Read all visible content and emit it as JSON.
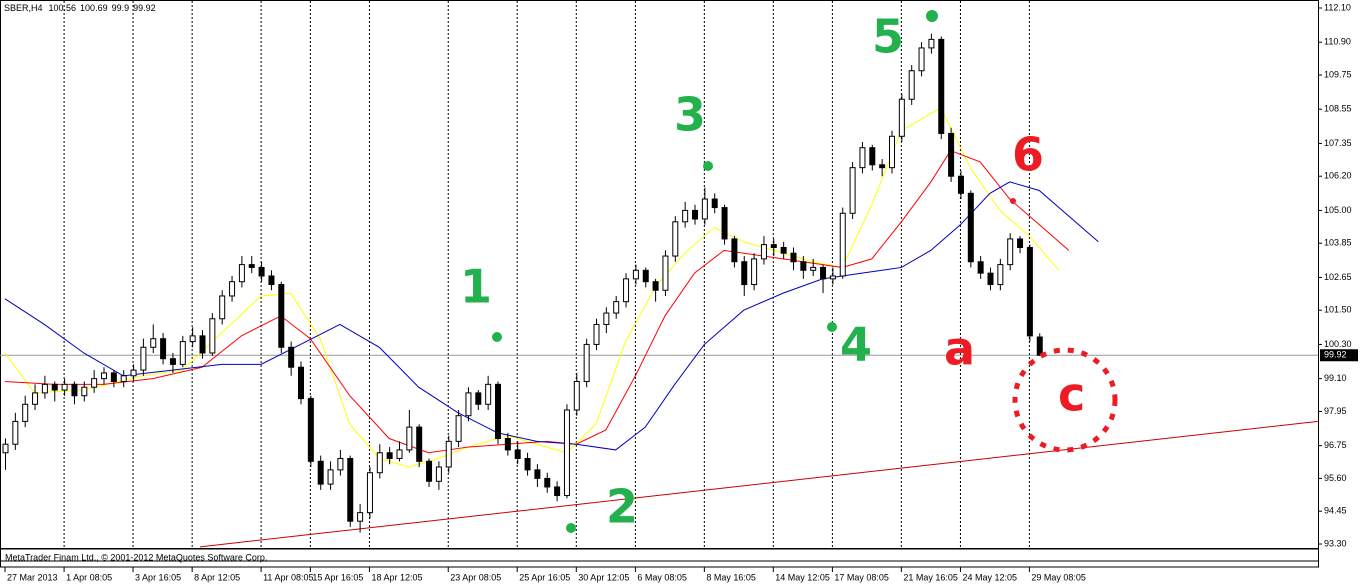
{
  "chart_data": {
    "type": "candlestick",
    "title": "SBER,H4",
    "footer": "MetaTrader Finam Ltd., © 2001-2012 MetaQuotes Software Corp.",
    "ylim": [
      93.3,
      112.1
    ],
    "yticks": [
      {
        "value": 112.1,
        "label": "112.10"
      },
      {
        "value": 110.9,
        "label": "110.90"
      },
      {
        "value": 109.75,
        "label": "109.75"
      },
      {
        "value": 108.55,
        "label": "108.55"
      },
      {
        "value": 107.35,
        "label": "107.35"
      },
      {
        "value": 106.2,
        "label": "106.20"
      },
      {
        "value": 105,
        "label": "105.00"
      },
      {
        "value": 103.85,
        "label": "103.85"
      },
      {
        "value": 102.65,
        "label": "102.65"
      },
      {
        "value": 101.5,
        "label": "101.50"
      },
      {
        "value": 100.3,
        "label": "100.30"
      },
      {
        "value": 99.1,
        "label": "99.10"
      },
      {
        "value": 97.95,
        "label": "97.95"
      },
      {
        "value": 96.75,
        "label": "96.75"
      },
      {
        "value": 95.6,
        "label": "95.60"
      },
      {
        "value": 94.45,
        "label": "94.45"
      },
      {
        "value": 93.3,
        "label": "93.30"
      }
    ],
    "xlim": [
      -0.5,
      133.3
    ],
    "xticks": [
      {
        "value": 0,
        "label": "27 Mar 2013"
      },
      {
        "value": 6,
        "label": "1 Apr 08:05"
      },
      {
        "value": 13,
        "label": "3 Apr 16:05"
      },
      {
        "value": 19,
        "label": "8 Apr 12:05"
      },
      {
        "value": 26,
        "label": "11 Apr 08:05"
      },
      {
        "value": 31,
        "label": "15 Apr 16:05"
      },
      {
        "value": 37,
        "label": "18 Apr 12:05"
      },
      {
        "value": 45,
        "label": "23 Apr 08:05"
      },
      {
        "value": 52,
        "label": "25 Apr 16:05"
      },
      {
        "value": 58,
        "label": "30 Apr 12:05"
      },
      {
        "value": 64,
        "label": "6 May 08:05"
      },
      {
        "value": 71,
        "label": "8 May 16:05"
      },
      {
        "value": 78,
        "label": "14 May 12:05"
      },
      {
        "value": 84,
        "label": "17 May 08:05"
      },
      {
        "value": 91,
        "label": "21 May 16:05"
      },
      {
        "value": 97,
        "label": "24 May 12:05"
      },
      {
        "value": 104,
        "label": "29 May 08:05"
      }
    ],
    "grid": true,
    "up_color": "#ffffff",
    "down_color": "#000000",
    "candles": [
      [
        96.5,
        97.0,
        95.9,
        96.8
      ],
      [
        96.8,
        97.9,
        96.6,
        97.6
      ],
      [
        97.6,
        98.5,
        97.4,
        98.2
      ],
      [
        98.2,
        98.9,
        98.0,
        98.6
      ],
      [
        98.6,
        99.2,
        98.4,
        98.9
      ],
      [
        98.9,
        99.0,
        98.3,
        98.7
      ],
      [
        98.7,
        99.1,
        98.5,
        98.9
      ],
      [
        98.9,
        99.0,
        98.2,
        98.5
      ],
      [
        98.5,
        99.0,
        98.3,
        98.8
      ],
      [
        98.8,
        99.4,
        98.6,
        99.1
      ],
      [
        99.1,
        99.5,
        98.9,
        99.3
      ],
      [
        99.3,
        99.4,
        98.8,
        99.0
      ],
      [
        99.0,
        99.4,
        98.8,
        99.2
      ],
      [
        99.2,
        99.6,
        99.0,
        99.4
      ],
      [
        99.4,
        100.5,
        99.2,
        100.2
      ],
      [
        100.2,
        101.0,
        100.0,
        100.5
      ],
      [
        100.5,
        100.7,
        99.6,
        99.8
      ],
      [
        99.8,
        100.0,
        99.3,
        99.6
      ],
      [
        99.6,
        100.6,
        99.5,
        100.4
      ],
      [
        100.4,
        100.9,
        100.2,
        100.6
      ],
      [
        100.6,
        100.8,
        99.8,
        100.0
      ],
      [
        100.0,
        101.4,
        99.9,
        101.2
      ],
      [
        101.2,
        102.2,
        101.0,
        102.0
      ],
      [
        102.0,
        102.7,
        101.8,
        102.5
      ],
      [
        102.5,
        103.4,
        102.3,
        103.1
      ],
      [
        103.1,
        103.4,
        102.8,
        103.0
      ],
      [
        103.0,
        103.2,
        102.5,
        102.7
      ],
      [
        102.7,
        102.9,
        102.2,
        102.4
      ],
      [
        102.4,
        102.5,
        100.0,
        100.2
      ],
      [
        100.2,
        100.4,
        99.2,
        99.5
      ],
      [
        99.5,
        99.7,
        98.2,
        98.4
      ],
      [
        98.4,
        98.5,
        96.0,
        96.2
      ],
      [
        96.2,
        96.4,
        95.2,
        95.4
      ],
      [
        95.4,
        96.2,
        95.2,
        95.9
      ],
      [
        95.9,
        96.6,
        95.7,
        96.3
      ],
      [
        96.3,
        96.4,
        93.9,
        94.1
      ],
      [
        94.1,
        94.7,
        93.7,
        94.4
      ],
      [
        94.4,
        96.0,
        94.2,
        95.8
      ],
      [
        95.8,
        96.8,
        95.6,
        96.5
      ],
      [
        96.5,
        96.7,
        96.1,
        96.3
      ],
      [
        96.3,
        96.9,
        96.2,
        96.6
      ],
      [
        96.6,
        98.0,
        96.5,
        97.4
      ],
      [
        97.4,
        97.5,
        96.0,
        96.2
      ],
      [
        96.2,
        96.3,
        95.3,
        95.5
      ],
      [
        95.5,
        96.2,
        95.2,
        96.0
      ],
      [
        96.0,
        97.1,
        95.8,
        96.9
      ],
      [
        96.9,
        98.0,
        96.7,
        97.8
      ],
      [
        97.8,
        98.8,
        97.6,
        98.6
      ],
      [
        98.6,
        98.7,
        98.0,
        98.2
      ],
      [
        98.2,
        99.2,
        98.0,
        98.9
      ],
      [
        98.9,
        99.0,
        96.8,
        97.0
      ],
      [
        97.0,
        97.2,
        96.4,
        96.6
      ],
      [
        96.6,
        96.9,
        96.1,
        96.3
      ],
      [
        96.3,
        96.5,
        95.7,
        95.9
      ],
      [
        95.9,
        96.1,
        95.3,
        95.6
      ],
      [
        95.6,
        95.8,
        95.1,
        95.3
      ],
      [
        95.3,
        95.5,
        94.8,
        95.0
      ],
      [
        95.0,
        98.2,
        94.9,
        98.0
      ],
      [
        98.0,
        99.3,
        97.8,
        99.0
      ],
      [
        99.0,
        100.5,
        98.8,
        100.3
      ],
      [
        100.3,
        101.2,
        100.1,
        101.0
      ],
      [
        101.0,
        101.6,
        100.7,
        101.4
      ],
      [
        101.4,
        102.0,
        101.2,
        101.8
      ],
      [
        101.8,
        102.8,
        101.6,
        102.6
      ],
      [
        102.6,
        103.1,
        102.4,
        102.9
      ],
      [
        102.9,
        103.0,
        102.3,
        102.5
      ],
      [
        102.5,
        102.6,
        101.8,
        102.2
      ],
      [
        102.2,
        103.6,
        102.0,
        103.4
      ],
      [
        103.4,
        104.8,
        103.2,
        104.6
      ],
      [
        104.6,
        105.3,
        104.4,
        105.0
      ],
      [
        105.0,
        105.2,
        104.5,
        104.7
      ],
      [
        104.7,
        105.8,
        104.5,
        105.4
      ],
      [
        105.4,
        105.6,
        104.9,
        105.1
      ],
      [
        105.1,
        105.2,
        103.8,
        104.0
      ],
      [
        104.0,
        104.1,
        103.0,
        103.2
      ],
      [
        103.2,
        103.4,
        102.0,
        102.4
      ],
      [
        102.4,
        103.5,
        102.2,
        103.3
      ],
      [
        103.3,
        104.1,
        103.1,
        103.8
      ],
      [
        103.8,
        104.0,
        103.4,
        103.7
      ],
      [
        103.7,
        103.9,
        103.3,
        103.5
      ],
      [
        103.5,
        103.7,
        102.9,
        103.2
      ],
      [
        103.2,
        103.4,
        102.6,
        102.9
      ],
      [
        102.9,
        103.3,
        102.7,
        103.0
      ],
      [
        103.0,
        103.1,
        102.1,
        102.6
      ],
      [
        102.6,
        103.0,
        102.4,
        102.7
      ],
      [
        102.7,
        105.1,
        102.6,
        104.9
      ],
      [
        104.9,
        106.7,
        104.7,
        106.5
      ],
      [
        106.5,
        107.4,
        106.3,
        107.2
      ],
      [
        107.2,
        107.3,
        106.4,
        106.6
      ],
      [
        106.6,
        106.8,
        106.2,
        106.5
      ],
      [
        106.5,
        107.8,
        106.3,
        107.6
      ],
      [
        107.6,
        109.1,
        107.4,
        108.9
      ],
      [
        108.9,
        110.1,
        108.7,
        109.9
      ],
      [
        109.9,
        110.9,
        109.7,
        110.7
      ],
      [
        110.7,
        111.2,
        110.5,
        111.0
      ],
      [
        111.0,
        111.1,
        107.5,
        107.7
      ],
      [
        107.7,
        107.9,
        106.0,
        106.2
      ],
      [
        106.2,
        106.4,
        105.4,
        105.6
      ],
      [
        105.6,
        105.7,
        103.0,
        103.2
      ],
      [
        103.2,
        103.4,
        102.6,
        102.8
      ],
      [
        102.8,
        103.0,
        102.2,
        102.4
      ],
      [
        102.4,
        103.3,
        102.2,
        103.1
      ],
      [
        103.1,
        104.2,
        102.9,
        104.0
      ],
      [
        104.0,
        104.1,
        103.5,
        103.7
      ],
      [
        103.7,
        103.8,
        100.4,
        100.6
      ],
      [
        100.56,
        100.69,
        99.9,
        99.92
      ]
    ],
    "ma_lines": [
      {
        "color": "#ffff00",
        "x": [
          0,
          3,
          8,
          14,
          18,
          22,
          26,
          29,
          32,
          35,
          38,
          41,
          44,
          47,
          51,
          54,
          57,
          60,
          63,
          66,
          69,
          72,
          75,
          78,
          82,
          85,
          88,
          91,
          95,
          98,
          101,
          104,
          107
        ],
        "values": [
          100.0,
          98.6,
          98.7,
          99.2,
          99.4,
          100.7,
          102.0,
          102.1,
          100.5,
          97.5,
          96.3,
          96.0,
          96.3,
          96.7,
          97.1,
          96.8,
          96.5,
          97.5,
          100.4,
          102.3,
          103.5,
          104.4,
          103.9,
          103.6,
          103.2,
          103.0,
          105.2,
          107.8,
          108.6,
          106.5,
          105.0,
          104.1,
          102.9
        ]
      },
      {
        "color": "#ff0000",
        "x": [
          0,
          5,
          10,
          15,
          20,
          24,
          28,
          31,
          35,
          39,
          43,
          47,
          51,
          55,
          58,
          61,
          64,
          67,
          70,
          73,
          77,
          81,
          85,
          88,
          91,
          94,
          96,
          99,
          102,
          105,
          108
        ],
        "values": [
          99.0,
          98.9,
          98.9,
          99.1,
          99.5,
          100.6,
          101.3,
          100.5,
          98.5,
          97.0,
          96.5,
          96.7,
          96.8,
          96.9,
          96.8,
          97.3,
          99.2,
          101.3,
          102.8,
          103.6,
          103.4,
          103.2,
          103.0,
          103.3,
          104.6,
          106.0,
          107.1,
          106.7,
          105.4,
          104.5,
          103.6
        ]
      },
      {
        "color": "#0000c0",
        "x": [
          0,
          4,
          8,
          12,
          17,
          22,
          26,
          30,
          34,
          38,
          42,
          46,
          50,
          54,
          58,
          62,
          65,
          68,
          71,
          75,
          79,
          83,
          87,
          91,
          94,
          97,
          100,
          102,
          105,
          108,
          111
        ],
        "values": [
          101.9,
          101.0,
          100.0,
          99.2,
          99.4,
          99.6,
          99.6,
          100.3,
          101.0,
          100.2,
          98.8,
          97.9,
          97.2,
          96.9,
          96.8,
          96.6,
          97.4,
          98.9,
          100.3,
          101.5,
          102.1,
          102.6,
          102.8,
          103.0,
          103.6,
          104.5,
          105.6,
          106.0,
          105.7,
          104.8,
          103.9
        ]
      }
    ],
    "trendline": {
      "color": "#cc0000",
      "x": [
        19.8,
        133.3
      ],
      "values": [
        93.2,
        97.6
      ]
    },
    "annotations": [
      {
        "text": "1",
        "color": "#22b14c"
      },
      {
        "text": "2",
        "color": "#22b14c"
      },
      {
        "text": "3",
        "color": "#22b14c"
      },
      {
        "text": "4",
        "color": "#22b14c"
      },
      {
        "text": "5",
        "color": "#22b14c"
      },
      {
        "text": "6",
        "color": "#ed1c24"
      },
      {
        "text": "a",
        "color": "#ed1c24"
      },
      {
        "text": "c",
        "color": "#ed1c24"
      }
    ]
  }
}
